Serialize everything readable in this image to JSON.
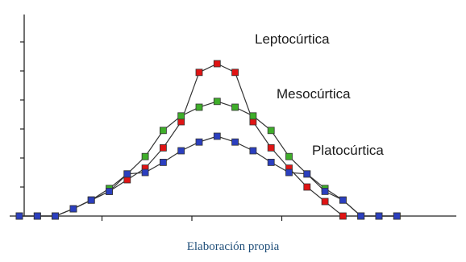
{
  "caption": "Elaboración propia",
  "chart_data": {
    "type": "line",
    "title": "",
    "xlabel": "",
    "ylabel": "",
    "x": [
      1,
      2,
      3,
      4,
      5,
      6,
      7,
      8,
      9,
      10,
      11,
      12,
      13,
      14,
      15,
      16,
      17,
      18,
      19,
      20,
      21,
      22
    ],
    "xlim": [
      1,
      22.7
    ],
    "ylim": [
      0,
      6
    ],
    "grid": false,
    "legend": "none",
    "series": [
      {
        "name": "Leptocúrtica",
        "color": "#e01414",
        "values": [
          0,
          0,
          0,
          0.25,
          0.55,
          0.85,
          1.25,
          1.65,
          2.35,
          3.25,
          4.95,
          5.25,
          4.95,
          3.25,
          2.35,
          1.65,
          1.0,
          0.5,
          0,
          0,
          0,
          0
        ]
      },
      {
        "name": "Mesocúrtica",
        "color": "#3fae2a",
        "values": [
          0,
          0,
          0,
          0.25,
          0.55,
          0.95,
          1.45,
          2.05,
          2.95,
          3.45,
          3.75,
          3.95,
          3.75,
          3.45,
          2.95,
          2.05,
          1.45,
          0.95,
          0.55,
          0,
          0,
          0
        ]
      },
      {
        "name": "Platocúrtica",
        "color": "#2b3fbf",
        "values": [
          0,
          0,
          0,
          0.25,
          0.55,
          0.85,
          1.45,
          1.5,
          1.85,
          2.25,
          2.55,
          2.75,
          2.55,
          2.25,
          1.85,
          1.5,
          1.45,
          0.85,
          0.55,
          0,
          0,
          0
        ]
      }
    ]
  }
}
